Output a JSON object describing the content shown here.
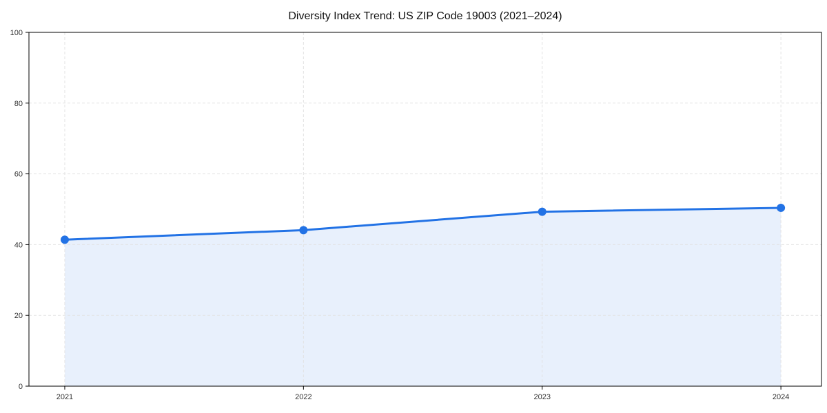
{
  "chart_data": {
    "type": "area",
    "title": "Diversity Index Trend: US ZIP Code 19003 (2021–2024)",
    "x": [
      2021,
      2022,
      2023,
      2024
    ],
    "series": [
      {
        "name": "Diversity Index",
        "values": [
          41.4,
          44.1,
          49.3,
          50.4
        ]
      }
    ],
    "xlabel": "",
    "ylabel": "",
    "xlim": [
      2020.85,
      2024.17
    ],
    "ylim": [
      0,
      100
    ],
    "xticks": [
      2021,
      2022,
      2023,
      2024
    ],
    "yticks": [
      0,
      20,
      40,
      60,
      80,
      100
    ],
    "grid": "dashed, horizontal and vertical",
    "legend": "none",
    "colors": {
      "line": "#2272e5",
      "marker": "#2272e5",
      "fill": "#e8f0fc",
      "grid": "#e2e2e2",
      "spine": "#000000",
      "tick": "#000000",
      "tick_label": "#333333",
      "title": "#111111",
      "background": "#ffffff"
    },
    "marker_radius": 6,
    "line_width": 3
  }
}
